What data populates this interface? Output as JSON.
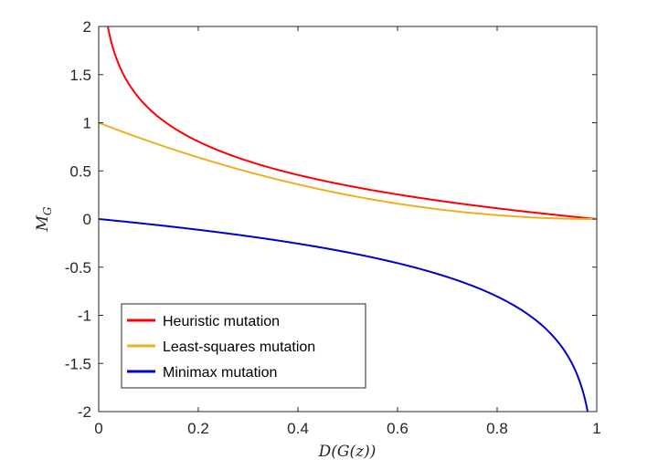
{
  "chart_data": {
    "type": "line",
    "title": "",
    "xlabel": "D(G(z))",
    "ylabel": "M_G",
    "xlim": [
      0,
      1
    ],
    "ylim": [
      -2,
      2
    ],
    "xticks": [
      0,
      0.2,
      0.4,
      0.6,
      0.8,
      1
    ],
    "xtick_labels": [
      "0",
      "0.2",
      "0.4",
      "0.6",
      "0.8",
      "1"
    ],
    "yticks": [
      2,
      1.5,
      1,
      0.5,
      0,
      -0.5,
      -1,
      -1.5,
      -2
    ],
    "ytick_labels": [
      "2",
      "1.5",
      "1",
      "0.5",
      "0",
      "-0.5",
      "-1",
      "-1.5",
      "-2"
    ],
    "grid": false,
    "legend_position": "bottom-left",
    "series": [
      {
        "name": "Heuristic mutation",
        "color": "#ff0000",
        "formula": "-log(D)/2",
        "x": [
          0.018,
          0.03,
          0.05,
          0.1,
          0.2,
          0.3,
          0.4,
          0.5,
          0.6,
          0.7,
          0.8,
          0.9,
          1.0
        ],
        "y": [
          2.0,
          1.75,
          1.5,
          1.15,
          0.8,
          0.6,
          0.46,
          0.35,
          0.26,
          0.18,
          0.11,
          0.05,
          0.0
        ]
      },
      {
        "name": "Least-squares mutation",
        "color": "#edb120",
        "formula": "(D-1)^2",
        "x": [
          0,
          0.1,
          0.2,
          0.3,
          0.4,
          0.5,
          0.6,
          0.7,
          0.8,
          0.9,
          1.0
        ],
        "y": [
          1.0,
          0.81,
          0.64,
          0.49,
          0.36,
          0.25,
          0.16,
          0.09,
          0.04,
          0.01,
          0.0
        ]
      },
      {
        "name": "Minimax mutation",
        "color": "#0000cc",
        "formula": "log(1-D)/2",
        "x": [
          0,
          0.1,
          0.2,
          0.3,
          0.4,
          0.5,
          0.6,
          0.7,
          0.8,
          0.9,
          0.95,
          0.982
        ],
        "y": [
          0,
          -0.05,
          -0.11,
          -0.18,
          -0.26,
          -0.35,
          -0.46,
          -0.6,
          -0.8,
          -1.15,
          -1.5,
          -2.0
        ]
      }
    ]
  }
}
